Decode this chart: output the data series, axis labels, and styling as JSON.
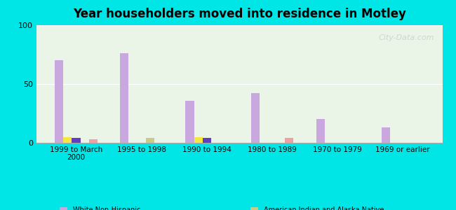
{
  "title": "Year householders moved into residence in Motley",
  "categories": [
    "1999 to March\n2000",
    "1995 to 1998",
    "1990 to 1994",
    "1980 to 1989",
    "1970 to 1979",
    "1969 or earlier"
  ],
  "series": {
    "White Non-Hispanic": [
      70,
      76,
      36,
      42,
      20,
      13
    ],
    "Other Race": [
      5,
      0,
      5,
      0,
      0,
      0
    ],
    "Hispanic or Latino": [
      4,
      0,
      4,
      0,
      0,
      0
    ],
    "American Indian and Alaska Native": [
      0,
      4,
      0,
      0,
      0,
      0
    ],
    "Two or More Races": [
      3,
      0,
      0,
      4,
      0,
      0
    ]
  },
  "colors": {
    "White Non-Hispanic": "#c9a8e0",
    "Other Race": "#f5e642",
    "Hispanic or Latino": "#6040c0",
    "American Indian and Alaska Native": "#c8cc88",
    "Two or More Races": "#f0a0a0"
  },
  "ylim": [
    0,
    100
  ],
  "yticks": [
    0,
    50,
    100
  ],
  "background_color": "#00e5e5",
  "plot_bg_color_left": "#e8f5e0",
  "plot_bg_color_right": "#f5f5ff",
  "bar_width": 0.13,
  "watermark": "City-Data.com"
}
